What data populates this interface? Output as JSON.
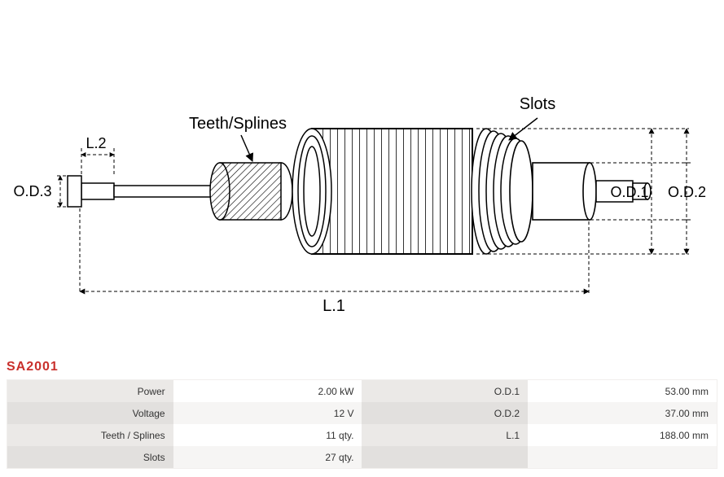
{
  "part_number": "SA2001",
  "diagram": {
    "labels": {
      "teeth_splines": "Teeth/Splines",
      "slots": "Slots",
      "L1": "L.1",
      "L2": "L.2",
      "OD1": "O.D.1",
      "OD2": "O.D.2",
      "OD3": "O.D.3"
    },
    "style": {
      "stroke": "#000000",
      "fill_core": "#ffffff",
      "font_family": "Arial, Helvetica, sans-serif",
      "label_font_size": 20,
      "dim_font_size": 18
    }
  },
  "specs": {
    "left": [
      {
        "label": "Power",
        "value": "2.00 kW"
      },
      {
        "label": "Voltage",
        "value": "12 V"
      },
      {
        "label": "Teeth / Splines",
        "value": "11 qty."
      },
      {
        "label": "Slots",
        "value": "27 qty."
      }
    ],
    "right": [
      {
        "label": "O.D.1",
        "value": "53.00 mm"
      },
      {
        "label": "O.D.2",
        "value": "37.00 mm"
      },
      {
        "label": "L.1",
        "value": "188.00 mm"
      },
      {
        "label": "",
        "value": ""
      }
    ]
  }
}
